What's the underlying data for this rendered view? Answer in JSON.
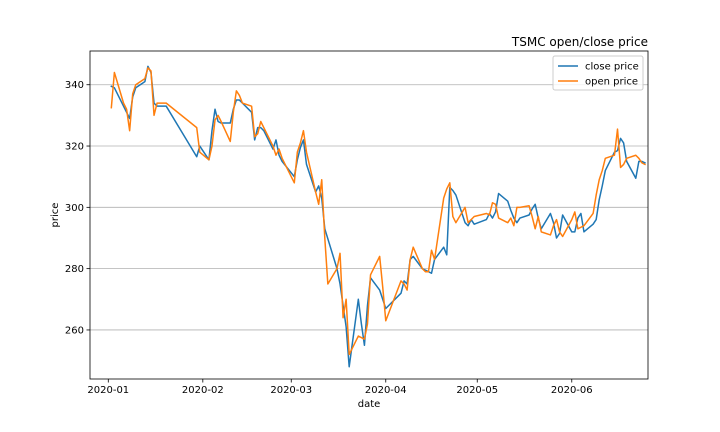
{
  "chart_data": {
    "type": "line",
    "title": "TSMC open/close price",
    "xlabel": "date",
    "ylabel": "price",
    "grid": "horizontal",
    "legend_position": "top-right",
    "xlim": [
      "2019-12-26",
      "2020-06-26"
    ],
    "ylim": [
      244,
      351
    ],
    "x_ticks": [
      "2020-01-01",
      "2020-02-01",
      "2020-03-01",
      "2020-04-01",
      "2020-05-01",
      "2020-06-01"
    ],
    "x_tick_labels": [
      "2020-01",
      "2020-02",
      "2020-03",
      "2020-04",
      "2020-05",
      "2020-06"
    ],
    "y_ticks": [
      260,
      280,
      300,
      320,
      340
    ],
    "y_tick_labels": [
      "260",
      "280",
      "300",
      "320",
      "340"
    ],
    "series": [
      {
        "name": "close price",
        "color": "#1f77b4",
        "points": [
          [
            "2020-01-02",
            339.5
          ],
          [
            "2020-01-03",
            339
          ],
          [
            "2020-01-06",
            333
          ],
          [
            "2020-01-07",
            331
          ],
          [
            "2020-01-08",
            329
          ],
          [
            "2020-01-09",
            336
          ],
          [
            "2020-01-10",
            339
          ],
          [
            "2020-01-13",
            341
          ],
          [
            "2020-01-14",
            346
          ],
          [
            "2020-01-15",
            344
          ],
          [
            "2020-01-16",
            334
          ],
          [
            "2020-01-17",
            333
          ],
          [
            "2020-01-20",
            333
          ],
          [
            "2020-01-30",
            316.5
          ],
          [
            "2020-01-31",
            320
          ],
          [
            "2020-02-03",
            315.5
          ],
          [
            "2020-02-04",
            325
          ],
          [
            "2020-02-05",
            332
          ],
          [
            "2020-02-06",
            328
          ],
          [
            "2020-02-07",
            327.5
          ],
          [
            "2020-02-10",
            327.5
          ],
          [
            "2020-02-11",
            332
          ],
          [
            "2020-02-12",
            335
          ],
          [
            "2020-02-13",
            335
          ],
          [
            "2020-02-14",
            334
          ],
          [
            "2020-02-17",
            331
          ],
          [
            "2020-02-18",
            322
          ],
          [
            "2020-02-19",
            326
          ],
          [
            "2020-02-20",
            326
          ],
          [
            "2020-02-21",
            325
          ],
          [
            "2020-02-24",
            319
          ],
          [
            "2020-02-25",
            322
          ],
          [
            "2020-02-26",
            317
          ],
          [
            "2020-02-27",
            315
          ],
          [
            "2020-03-02",
            310
          ],
          [
            "2020-03-03",
            315.5
          ],
          [
            "2020-03-04",
            319.5
          ],
          [
            "2020-03-05",
            322
          ],
          [
            "2020-03-06",
            314
          ],
          [
            "2020-03-09",
            305
          ],
          [
            "2020-03-10",
            307
          ],
          [
            "2020-03-11",
            303
          ],
          [
            "2020-03-12",
            293
          ],
          [
            "2020-03-16",
            280
          ],
          [
            "2020-03-17",
            275
          ],
          [
            "2020-03-18",
            268
          ],
          [
            "2020-03-19",
            261
          ],
          [
            "2020-03-20",
            248
          ],
          [
            "2020-03-23",
            270
          ],
          [
            "2020-03-24",
            262
          ],
          [
            "2020-03-25",
            255
          ],
          [
            "2020-03-26",
            268
          ],
          [
            "2020-03-27",
            277
          ],
          [
            "2020-03-30",
            273
          ],
          [
            "2020-03-31",
            270
          ],
          [
            "2020-04-01",
            267
          ],
          [
            "2020-04-06",
            272
          ],
          [
            "2020-04-07",
            276
          ],
          [
            "2020-04-08",
            275
          ],
          [
            "2020-04-09",
            283
          ],
          [
            "2020-04-10",
            284
          ],
          [
            "2020-04-13",
            280
          ],
          [
            "2020-04-14",
            279.5
          ],
          [
            "2020-04-15",
            279
          ],
          [
            "2020-04-16",
            278.5
          ],
          [
            "2020-04-17",
            283
          ],
          [
            "2020-04-20",
            287
          ],
          [
            "2020-04-21",
            284.5
          ],
          [
            "2020-04-22",
            306.5
          ],
          [
            "2020-04-23",
            305.5
          ],
          [
            "2020-04-24",
            304
          ],
          [
            "2020-04-27",
            295
          ],
          [
            "2020-04-28",
            294
          ],
          [
            "2020-04-29",
            296
          ],
          [
            "2020-04-30",
            294.5
          ],
          [
            "2020-05-04",
            296
          ],
          [
            "2020-05-05",
            298
          ],
          [
            "2020-05-06",
            296.5
          ],
          [
            "2020-05-07",
            298.5
          ],
          [
            "2020-05-08",
            304.5
          ],
          [
            "2020-05-11",
            302
          ],
          [
            "2020-05-12",
            299
          ],
          [
            "2020-05-13",
            296.5
          ],
          [
            "2020-05-14",
            295
          ],
          [
            "2020-05-15",
            296.5
          ],
          [
            "2020-05-18",
            297.5
          ],
          [
            "2020-05-19",
            299.5
          ],
          [
            "2020-05-20",
            301
          ],
          [
            "2020-05-21",
            296.5
          ],
          [
            "2020-05-22",
            293
          ],
          [
            "2020-05-25",
            298
          ],
          [
            "2020-05-26",
            295
          ],
          [
            "2020-05-27",
            290
          ],
          [
            "2020-05-28",
            291.5
          ],
          [
            "2020-05-29",
            297.5
          ],
          [
            "2020-06-01",
            292
          ],
          [
            "2020-06-02",
            292
          ],
          [
            "2020-06-03",
            296.5
          ],
          [
            "2020-06-04",
            298
          ],
          [
            "2020-06-05",
            292
          ],
          [
            "2020-06-08",
            294.5
          ],
          [
            "2020-06-09",
            296
          ],
          [
            "2020-06-10",
            302.5
          ],
          [
            "2020-06-11",
            307
          ],
          [
            "2020-06-12",
            312
          ],
          [
            "2020-06-15",
            318
          ],
          [
            "2020-06-16",
            318.5
          ],
          [
            "2020-06-17",
            322.5
          ],
          [
            "2020-06-18",
            321
          ],
          [
            "2020-06-19",
            315
          ],
          [
            "2020-06-22",
            309.5
          ],
          [
            "2020-06-23",
            315
          ],
          [
            "2020-06-24",
            315
          ],
          [
            "2020-06-25",
            314.5
          ]
        ]
      },
      {
        "name": "open price",
        "color": "#ff7f0e",
        "points": [
          [
            "2020-01-02",
            332.5
          ],
          [
            "2020-01-03",
            344
          ],
          [
            "2020-01-06",
            334
          ],
          [
            "2020-01-07",
            332
          ],
          [
            "2020-01-08",
            325
          ],
          [
            "2020-01-09",
            337
          ],
          [
            "2020-01-10",
            340
          ],
          [
            "2020-01-13",
            342
          ],
          [
            "2020-01-14",
            345.5
          ],
          [
            "2020-01-15",
            344.5
          ],
          [
            "2020-01-16",
            330
          ],
          [
            "2020-01-17",
            334
          ],
          [
            "2020-01-20",
            334
          ],
          [
            "2020-01-30",
            326
          ],
          [
            "2020-01-31",
            318
          ],
          [
            "2020-02-03",
            315.5
          ],
          [
            "2020-02-04",
            320
          ],
          [
            "2020-02-05",
            328.5
          ],
          [
            "2020-02-06",
            330
          ],
          [
            "2020-02-07",
            328
          ],
          [
            "2020-02-10",
            321.5
          ],
          [
            "2020-02-11",
            331
          ],
          [
            "2020-02-12",
            338
          ],
          [
            "2020-02-13",
            336.5
          ],
          [
            "2020-02-14",
            334
          ],
          [
            "2020-02-17",
            333
          ],
          [
            "2020-02-18",
            323
          ],
          [
            "2020-02-19",
            324
          ],
          [
            "2020-02-20",
            328
          ],
          [
            "2020-02-21",
            326
          ],
          [
            "2020-02-24",
            320
          ],
          [
            "2020-02-25",
            317
          ],
          [
            "2020-02-26",
            319
          ],
          [
            "2020-02-27",
            316
          ],
          [
            "2020-03-02",
            308
          ],
          [
            "2020-03-03",
            318
          ],
          [
            "2020-03-04",
            321
          ],
          [
            "2020-03-05",
            325
          ],
          [
            "2020-03-06",
            318
          ],
          [
            "2020-03-09",
            305
          ],
          [
            "2020-03-10",
            301
          ],
          [
            "2020-03-11",
            309
          ],
          [
            "2020-03-12",
            290
          ],
          [
            "2020-03-13",
            275
          ],
          [
            "2020-03-16",
            280
          ],
          [
            "2020-03-17",
            285
          ],
          [
            "2020-03-18",
            264
          ],
          [
            "2020-03-19",
            270
          ],
          [
            "2020-03-20",
            252
          ],
          [
            "2020-03-23",
            258
          ],
          [
            "2020-03-25",
            257
          ],
          [
            "2020-03-26",
            262
          ],
          [
            "2020-03-27",
            278
          ],
          [
            "2020-03-30",
            284
          ],
          [
            "2020-03-31",
            274
          ],
          [
            "2020-04-01",
            263
          ],
          [
            "2020-04-06",
            276
          ],
          [
            "2020-04-07",
            275
          ],
          [
            "2020-04-08",
            273
          ],
          [
            "2020-04-09",
            283
          ],
          [
            "2020-04-10",
            287
          ],
          [
            "2020-04-13",
            280
          ],
          [
            "2020-04-14",
            279
          ],
          [
            "2020-04-15",
            279
          ],
          [
            "2020-04-16",
            286
          ],
          [
            "2020-04-17",
            283
          ],
          [
            "2020-04-20",
            303
          ],
          [
            "2020-04-21",
            306
          ],
          [
            "2020-04-22",
            308
          ],
          [
            "2020-04-23",
            297
          ],
          [
            "2020-04-24",
            295
          ],
          [
            "2020-04-27",
            300
          ],
          [
            "2020-04-28",
            295
          ],
          [
            "2020-04-29",
            296
          ],
          [
            "2020-04-30",
            297
          ],
          [
            "2020-05-04",
            298
          ],
          [
            "2020-05-05",
            297.5
          ],
          [
            "2020-05-06",
            301.5
          ],
          [
            "2020-05-07",
            301
          ],
          [
            "2020-05-08",
            296.5
          ],
          [
            "2020-05-11",
            295
          ],
          [
            "2020-05-12",
            296.5
          ],
          [
            "2020-05-13",
            294
          ],
          [
            "2020-05-14",
            300
          ],
          [
            "2020-05-15",
            300
          ],
          [
            "2020-05-18",
            300.5
          ],
          [
            "2020-05-19",
            297
          ],
          [
            "2020-05-20",
            293
          ],
          [
            "2020-05-21",
            297
          ],
          [
            "2020-05-22",
            292
          ],
          [
            "2020-05-25",
            291
          ],
          [
            "2020-05-26",
            294
          ],
          [
            "2020-05-27",
            296
          ],
          [
            "2020-05-28",
            292
          ],
          [
            "2020-05-29",
            290.5
          ],
          [
            "2020-06-01",
            296
          ],
          [
            "2020-06-02",
            298.5
          ],
          [
            "2020-06-03",
            293
          ],
          [
            "2020-06-04",
            293.5
          ],
          [
            "2020-06-05",
            294
          ],
          [
            "2020-06-08",
            298
          ],
          [
            "2020-06-09",
            304
          ],
          [
            "2020-06-10",
            309
          ],
          [
            "2020-06-11",
            312
          ],
          [
            "2020-06-12",
            316
          ],
          [
            "2020-06-15",
            317
          ],
          [
            "2020-06-16",
            325.5
          ],
          [
            "2020-06-17",
            313
          ],
          [
            "2020-06-18",
            314
          ],
          [
            "2020-06-19",
            316
          ],
          [
            "2020-06-22",
            317
          ],
          [
            "2020-06-23",
            316
          ],
          [
            "2020-06-24",
            314.5
          ],
          [
            "2020-06-25",
            314
          ]
        ]
      }
    ]
  }
}
